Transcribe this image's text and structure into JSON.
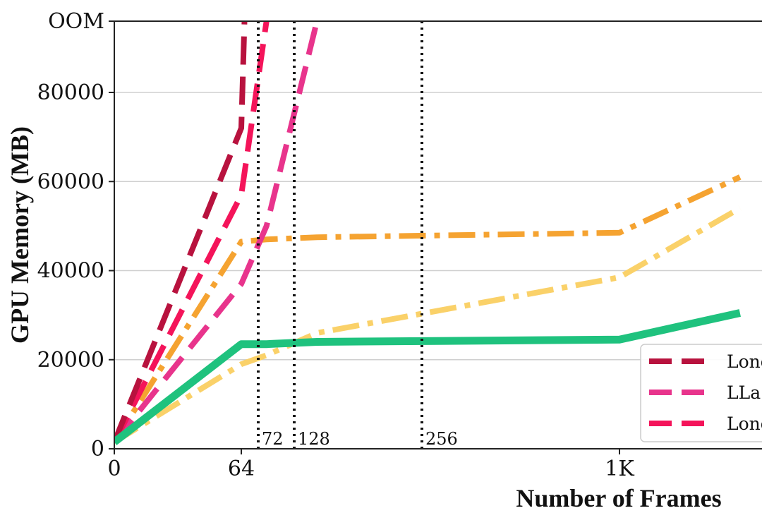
{
  "chart_data": {
    "type": "line",
    "title": "",
    "xlabel": "Number of Frames",
    "ylabel": "GPU Memory (MB)",
    "x_ticks": [
      {
        "value": 0,
        "label": "0"
      },
      {
        "value": 64,
        "label": "64"
      },
      {
        "value": 1024,
        "label": "1K"
      }
    ],
    "y_ticks": [
      {
        "value": 0,
        "label": "0"
      },
      {
        "value": 20000,
        "label": "20000"
      },
      {
        "value": 40000,
        "label": "40000"
      },
      {
        "value": 60000,
        "label": "60000"
      },
      {
        "value": 80000,
        "label": "80000"
      },
      {
        "value": 96000,
        "label": "OOM"
      }
    ],
    "ylim": [
      0,
      96000
    ],
    "grid": "horizontal",
    "annotations": [
      {
        "x": 72,
        "label": "72"
      },
      {
        "x": 128,
        "label": "128"
      },
      {
        "x": 256,
        "label": "256"
      }
    ],
    "legend": {
      "position": "lower-right",
      "entries": [
        "Long",
        "LLa",
        "Long"
      ]
    },
    "series": [
      {
        "name": "Long",
        "color": "#b8123e",
        "style": "dashed",
        "points": [
          [
            0,
            1500
          ],
          [
            64,
            72000
          ],
          [
            72,
            96000
          ]
        ]
      },
      {
        "name": "Long",
        "color": "#f4145a",
        "style": "dashed",
        "points": [
          [
            0,
            1500
          ],
          [
            64,
            57000
          ],
          [
            128,
            96000
          ]
        ]
      },
      {
        "name": "LLa",
        "color": "#e8348c",
        "style": "dashed",
        "points": [
          [
            0,
            1500
          ],
          [
            64,
            37000
          ],
          [
            128,
            50000
          ],
          [
            256,
            96000
          ]
        ]
      },
      {
        "color": "#f5a331",
        "style": "dashdot",
        "points": [
          [
            0,
            1500
          ],
          [
            64,
            46500
          ],
          [
            128,
            47000
          ],
          [
            256,
            47500
          ],
          [
            1024,
            48500
          ],
          [
            1330,
            61000
          ]
        ]
      },
      {
        "color": "#fad169",
        "style": "dashdot",
        "points": [
          [
            0,
            1500
          ],
          [
            64,
            19000
          ],
          [
            128,
            21000
          ],
          [
            256,
            26000
          ],
          [
            1024,
            38500
          ],
          [
            1330,
            54000
          ]
        ]
      },
      {
        "color": "#1fc27e",
        "style": "solid",
        "points": [
          [
            0,
            1500
          ],
          [
            64,
            23500
          ],
          [
            128,
            23500
          ],
          [
            256,
            24000
          ],
          [
            1024,
            24500
          ],
          [
            1330,
            30500
          ]
        ]
      }
    ]
  }
}
